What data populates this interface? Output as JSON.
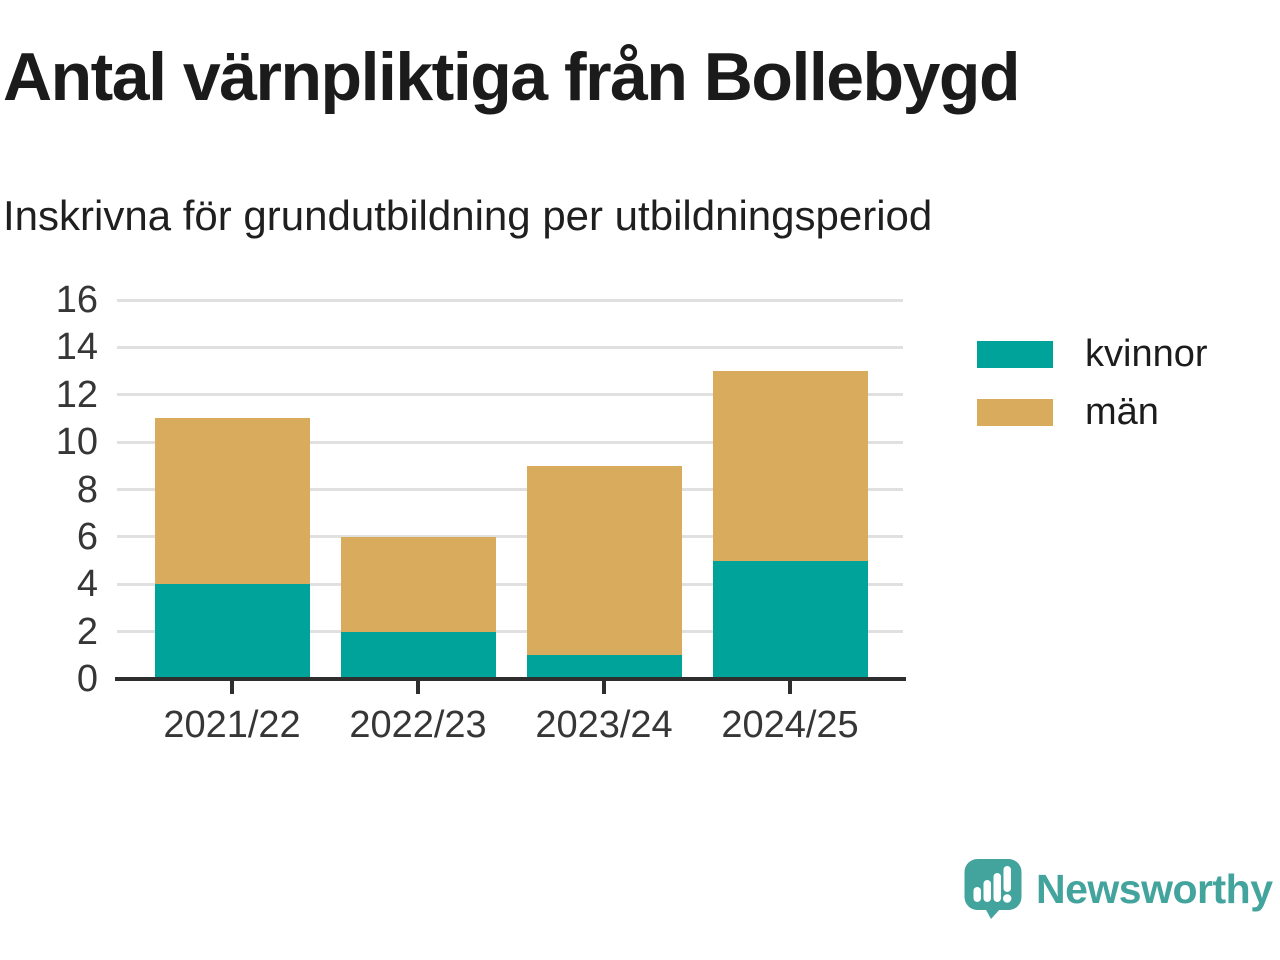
{
  "page": {
    "title": "Antal värnpliktiga från Bollebygd",
    "subtitle": "Inskrivna för grundutbildning per utbildningsperiod"
  },
  "branding": {
    "name": "Newsworthy",
    "color": "#43a39d",
    "icon": "speech-bubble-bar-chart-icon"
  },
  "chart_data": {
    "type": "bar",
    "stacked": true,
    "title": "Antal värnpliktiga från Bollebygd",
    "subtitle": "Inskrivna för grundutbildning per utbildningsperiod",
    "categories": [
      "2021/22",
      "2022/23",
      "2023/24",
      "2024/25"
    ],
    "series": [
      {
        "name": "kvinnor",
        "color": "#00a399",
        "values": [
          4,
          2,
          1,
          5
        ]
      },
      {
        "name": "män",
        "color": "#d8ac5c",
        "values": [
          7,
          4,
          8,
          8
        ]
      }
    ],
    "stack_totals": [
      11,
      6,
      9,
      13
    ],
    "ylim": [
      0,
      16
    ],
    "yticks": [
      0,
      2,
      4,
      6,
      8,
      10,
      12,
      14,
      16
    ],
    "xlabel": "",
    "ylabel": "",
    "grid": "horizontal",
    "grid_color": "#e0e0e0",
    "axis_color": "#2e2e2e",
    "tick_label_color": "#363636",
    "legend_position": "right"
  }
}
